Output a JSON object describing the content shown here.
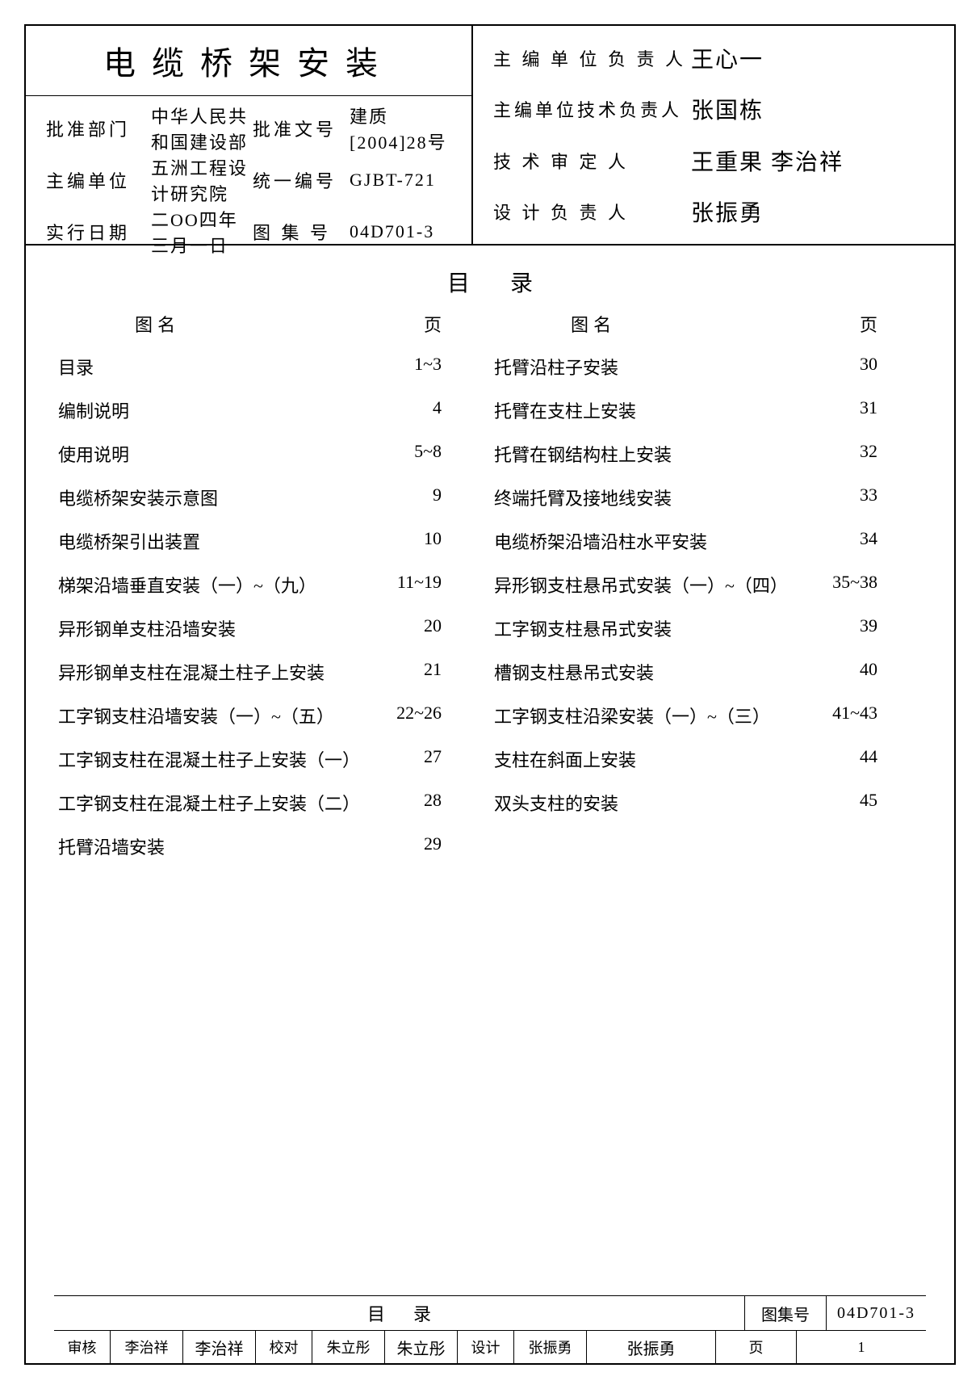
{
  "title": "电缆桥架安装",
  "meta_left": {
    "approve_dept_label": "批准部门",
    "approve_dept": "中华人民共和国建设部",
    "main_org_label": "主编单位",
    "main_org": "五洲工程设计研究院",
    "impl_date_label": "实行日期",
    "impl_date": "二OO四年三月一日",
    "approve_doc_label": "批准文号",
    "approve_doc": "建质[2004]28号",
    "unify_no_label": "统一编号",
    "unify_no": "GJBT-721",
    "tuji_no_label": "图 集 号",
    "tuji_no": "04D701-3"
  },
  "meta_right": {
    "l1": "主 编 单 位 负 责 人",
    "l2": "主编单位技术负责人",
    "l3": "技   术   审   定   人",
    "l4": "设   计   负   责   人",
    "s1": "王心一",
    "s2": "张国栋",
    "s3": "王重果 李治祥",
    "s4": "张振勇"
  },
  "toc_title": "目录",
  "col_head_name": "图       名",
  "col_head_page": "页",
  "left_col": [
    {
      "name": "目录",
      "page": "1~3"
    },
    {
      "name": "编制说明",
      "page": "4"
    },
    {
      "name": "使用说明",
      "page": "5~8"
    },
    {
      "name": "电缆桥架安装示意图",
      "page": "9"
    },
    {
      "name": "电缆桥架引出装置",
      "page": "10"
    },
    {
      "name": "梯架沿墙垂直安装（一）~（九）",
      "page": "11~19"
    },
    {
      "name": "异形钢单支柱沿墙安装",
      "page": "20"
    },
    {
      "name": "异形钢单支柱在混凝土柱子上安装",
      "page": "21"
    },
    {
      "name": "工字钢支柱沿墙安装（一）~（五）",
      "page": "22~26"
    },
    {
      "name": "工字钢支柱在混凝土柱子上安装（一）",
      "page": "27"
    },
    {
      "name": "工字钢支柱在混凝土柱子上安装（二）",
      "page": "28"
    },
    {
      "name": "托臂沿墙安装",
      "page": "29"
    }
  ],
  "right_col": [
    {
      "name": "托臂沿柱子安装",
      "page": "30"
    },
    {
      "name": "托臂在支柱上安装",
      "page": "31"
    },
    {
      "name": "托臂在钢结构柱上安装",
      "page": "32"
    },
    {
      "name": "终端托臂及接地线安装",
      "page": "33"
    },
    {
      "name": "电缆桥架沿墙沿柱水平安装",
      "page": "34"
    },
    {
      "name": "异形钢支柱悬吊式安装（一）~（四）",
      "page": "35~38"
    },
    {
      "name": "工字钢支柱悬吊式安装",
      "page": "39"
    },
    {
      "name": "槽钢支柱悬吊式安装",
      "page": "40"
    },
    {
      "name": "工字钢支柱沿梁安装（一）~（三）",
      "page": "41~43"
    },
    {
      "name": "支柱在斜面上安装",
      "page": "44"
    },
    {
      "name": "双头支柱的安装",
      "page": "45"
    }
  ],
  "footer": {
    "title": "目录",
    "tuji_label": "图集号",
    "tuji_val": "04D701-3",
    "page_label": "页",
    "page_val": "1",
    "shenhe_label": "审核",
    "shenhe_name": "李治祥",
    "shenhe_sig": "李治祥",
    "jiaodui_label": "校对",
    "jiaodui_name": "朱立彤",
    "jiaodui_sig": "朱立彤",
    "sheji_label": "设计",
    "sheji_name": "张振勇",
    "sheji_sig": "张振勇"
  }
}
